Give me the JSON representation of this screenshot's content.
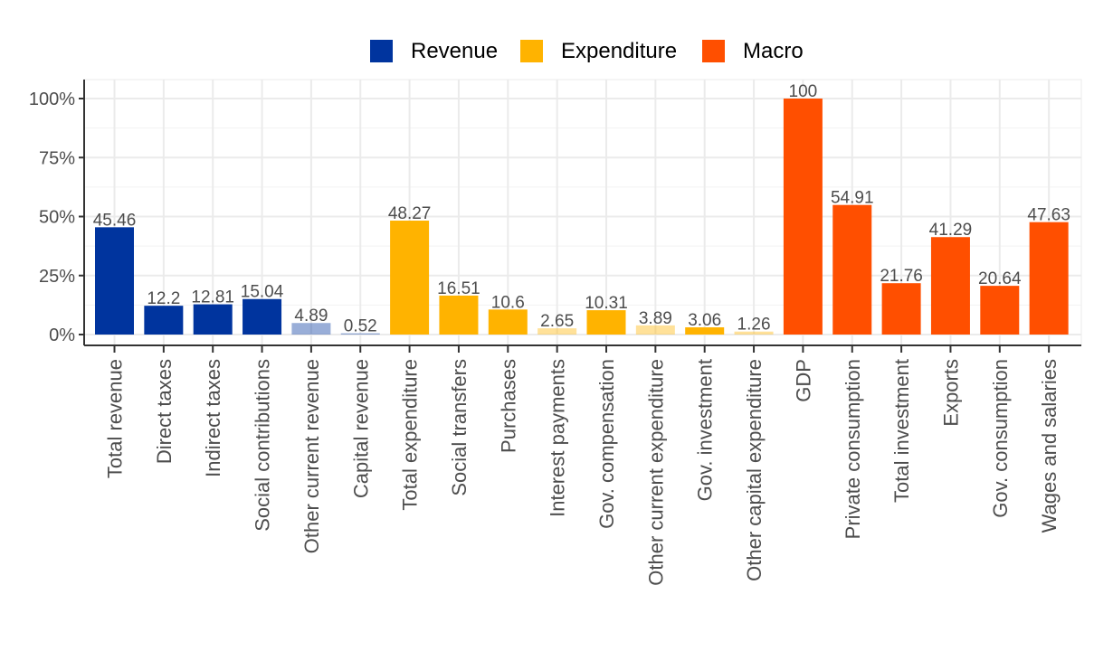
{
  "chart_data": {
    "type": "bar",
    "title": "",
    "xlabel": "",
    "ylabel": "",
    "ylim": [
      0,
      100
    ],
    "ytick_labels": [
      "0%",
      "25%",
      "50%",
      "75%",
      "100%"
    ],
    "ytick_values": [
      0,
      25,
      50,
      75,
      100
    ],
    "grid": true,
    "legend_position": "top",
    "legend": [
      {
        "name": "Revenue",
        "color": "#00349e"
      },
      {
        "name": "Expenditure",
        "color": "#ffb300"
      },
      {
        "name": "Macro",
        "color": "#ff4f00"
      }
    ],
    "categories": [
      "Total revenue",
      "Direct taxes",
      "Indirect taxes",
      "Social contributions",
      "Other current revenue",
      "Capital revenue",
      "Total expenditure",
      "Social transfers",
      "Purchases",
      "Interest payments",
      "Gov. compensation",
      "Other current expenditure",
      "Gov. investment",
      "Other capital expenditure",
      "GDP",
      "Private consumption",
      "Total investment",
      "Exports",
      "Gov. consumption",
      "Wages and salaries"
    ],
    "values": [
      45.46,
      12.2,
      12.81,
      15.04,
      4.89,
      0.52,
      48.27,
      16.51,
      10.6,
      2.65,
      10.31,
      3.89,
      3.06,
      1.26,
      100,
      54.91,
      21.76,
      41.29,
      20.64,
      47.63
    ],
    "value_labels": [
      "45.46",
      "12.2",
      "12.81",
      "15.04",
      "4.89",
      "0.52",
      "48.27",
      "16.51",
      "10.6",
      "2.65",
      "10.31",
      "3.89",
      "3.06",
      "1.26",
      "100",
      "54.91",
      "21.76",
      "41.29",
      "20.64",
      "47.63"
    ],
    "groups": [
      "Revenue",
      "Revenue",
      "Revenue",
      "Revenue",
      "Revenue",
      "Revenue",
      "Expenditure",
      "Expenditure",
      "Expenditure",
      "Expenditure",
      "Expenditure",
      "Expenditure",
      "Expenditure",
      "Expenditure",
      "Macro",
      "Macro",
      "Macro",
      "Macro",
      "Macro",
      "Macro"
    ],
    "faded": [
      false,
      false,
      false,
      false,
      true,
      true,
      false,
      false,
      false,
      true,
      false,
      true,
      false,
      true,
      false,
      false,
      false,
      false,
      false,
      false
    ]
  }
}
